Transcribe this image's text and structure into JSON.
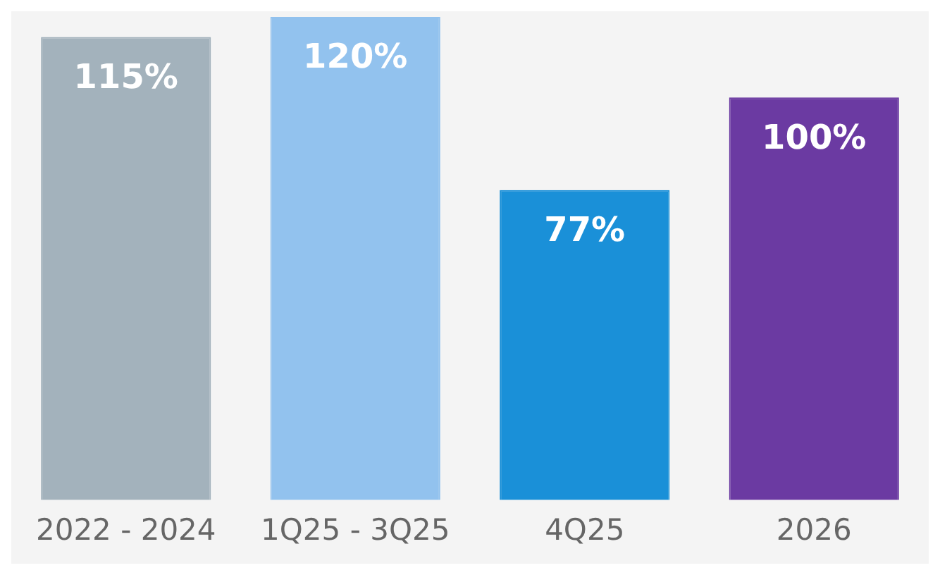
{
  "chart_data": {
    "type": "bar",
    "categories": [
      "2022 - 2024",
      "1Q25 - 3Q25",
      "4Q25",
      "2026"
    ],
    "values": [
      115,
      120,
      77,
      100
    ],
    "colors": [
      "#a3b2bc",
      "#92c2ee",
      "#1a90d8",
      "#6b3aa2"
    ],
    "value_labels": [
      "115%",
      "120%",
      "77%",
      "100%"
    ],
    "grid": false,
    "legend": false,
    "tick_labels": "x"
  }
}
